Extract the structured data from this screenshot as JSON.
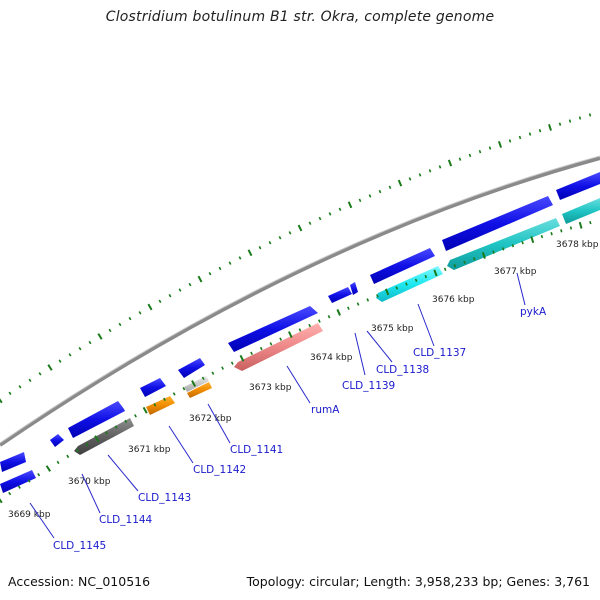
{
  "title": "Clostridium botulinum B1 str. Okra, complete genome",
  "footer": {
    "accession": "Accession: NC_010516",
    "topology": "Topology: circular; Length: 3,958,233 bp; Genes: 3,761"
  },
  "kbp_labels": [
    "3669 kbp",
    "3670 kbp",
    "3671 kbp",
    "3672 kbp",
    "3673 kbp",
    "3674 kbp",
    "3675 kbp",
    "3676 kbp",
    "3677 kbp",
    "3678 kbp"
  ],
  "gene_labels": [
    "CLD_1145",
    "CLD_1144",
    "CLD_1143",
    "CLD_1142",
    "CLD_1141",
    "rumA",
    "CLD_1139",
    "CLD_1138",
    "CLD_1137",
    "pykA"
  ],
  "colors": {
    "backbone": "#8c8c8c",
    "feature_cds": "#0a0adc",
    "rumA": "#ee8c8c",
    "pykA": "#1ec8c8",
    "CLD_1137": "#18ecf0",
    "CLD_1143": "#666666",
    "CLD_1142": "#f08c00",
    "CLD_1141": "#f08c00",
    "ticks": "#1a7a1a",
    "label_link": "#2a2acc"
  }
}
